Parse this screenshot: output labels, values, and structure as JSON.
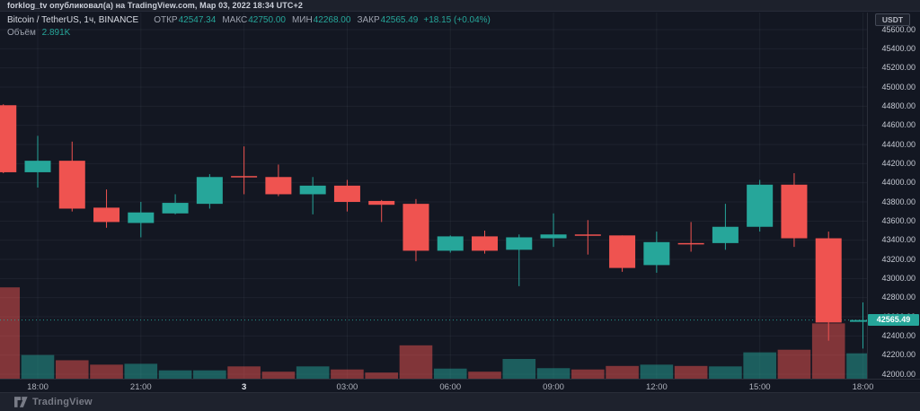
{
  "attribution": {
    "text": "forklog_tv опубликовал(а) на TradingView.com, Мар 03, 2022 18:34 UTC+2"
  },
  "legend": {
    "symbol": "Bitcoin / TetherUS, 1ч, BINANCE",
    "open_label": "ОТКР",
    "open_value": "42547.34",
    "high_label": "МАКС",
    "high_value": "42750.00",
    "low_label": "МИН",
    "low_value": "42268.00",
    "close_label": "ЗАКР",
    "close_value": "42565.49",
    "change": "+18.15 (+0.04%)",
    "volume_label": "Объём",
    "volume_value": "2.891K"
  },
  "price_axis": {
    "currency": "USDT",
    "last_price_label": "42565.49"
  },
  "footer": {
    "brand": "TradingView"
  },
  "colors": {
    "up": "#26a69a",
    "down": "#ef5350",
    "up_volume": "rgba(38,166,154,0.5)",
    "down_volume": "rgba(239,83,80,0.5)",
    "last_price_line": "#26a69a",
    "grid": "rgba(170,180,205,0.07)"
  },
  "chart_data": {
    "type": "candlestick",
    "title": "Bitcoin / TetherUS, 1ч, BINANCE",
    "ylabel": "Price (USDT)",
    "price_range": {
      "min": 42000,
      "max": 45600,
      "tick_step": 200
    },
    "price_ticks": [
      45600,
      45400,
      45200,
      45000,
      44800,
      44600,
      44400,
      44200,
      44000,
      43800,
      43600,
      43400,
      43200,
      43000,
      42800,
      42600,
      42400,
      42200,
      42000
    ],
    "time_labels": [
      {
        "text": "18:00",
        "candle": 1
      },
      {
        "text": "21:00",
        "candle": 4
      },
      {
        "text": "3",
        "candle": 7,
        "emphasis": true
      },
      {
        "text": "03:00",
        "candle": 10
      },
      {
        "text": "06:00",
        "candle": 13
      },
      {
        "text": "09:00",
        "candle": 16
      },
      {
        "text": "12:00",
        "candle": 19
      },
      {
        "text": "15:00",
        "candle": 22
      },
      {
        "text": "18:00",
        "candle": 25
      }
    ],
    "current_price": 42565.49,
    "candles": [
      {
        "time": "17:00",
        "open": 44810,
        "high": 44820,
        "low": 44100,
        "close": 44110,
        "volume": 10400
      },
      {
        "time": "18:00",
        "open": 44110,
        "high": 44490,
        "low": 43950,
        "close": 44230,
        "volume": 2700
      },
      {
        "time": "19:00",
        "open": 44230,
        "high": 44430,
        "low": 43700,
        "close": 43730,
        "volume": 2100
      },
      {
        "time": "20:00",
        "open": 43740,
        "high": 43930,
        "low": 43530,
        "close": 43590,
        "volume": 1600
      },
      {
        "time": "21:00",
        "open": 43580,
        "high": 43800,
        "low": 43430,
        "close": 43690,
        "volume": 1700
      },
      {
        "time": "22:00",
        "open": 43680,
        "high": 43880,
        "low": 43670,
        "close": 43790,
        "volume": 950
      },
      {
        "time": "23:00",
        "open": 43780,
        "high": 44090,
        "low": 43730,
        "close": 44060,
        "volume": 950
      },
      {
        "time": "00:00",
        "open": 44070,
        "high": 44380,
        "low": 43880,
        "close": 44060,
        "volume": 1400
      },
      {
        "time": "01:00",
        "open": 44060,
        "high": 44190,
        "low": 43860,
        "close": 43880,
        "volume": 800
      },
      {
        "time": "02:00",
        "open": 43880,
        "high": 44060,
        "low": 43670,
        "close": 43970,
        "volume": 1400
      },
      {
        "time": "03:00",
        "open": 43970,
        "high": 44030,
        "low": 43700,
        "close": 43800,
        "volume": 1050
      },
      {
        "time": "04:00",
        "open": 43810,
        "high": 43820,
        "low": 43590,
        "close": 43770,
        "volume": 700
      },
      {
        "time": "05:00",
        "open": 43780,
        "high": 43830,
        "low": 43180,
        "close": 43290,
        "volume": 3800
      },
      {
        "time": "06:00",
        "open": 43290,
        "high": 43450,
        "low": 43270,
        "close": 43440,
        "volume": 1150
      },
      {
        "time": "07:00",
        "open": 43440,
        "high": 43500,
        "low": 43260,
        "close": 43290,
        "volume": 800
      },
      {
        "time": "08:00",
        "open": 43300,
        "high": 43460,
        "low": 42920,
        "close": 43430,
        "volume": 2250
      },
      {
        "time": "09:00",
        "open": 43420,
        "high": 43680,
        "low": 43330,
        "close": 43460,
        "volume": 1200
      },
      {
        "time": "10:00",
        "open": 43460,
        "high": 43610,
        "low": 43250,
        "close": 43450,
        "volume": 1050
      },
      {
        "time": "11:00",
        "open": 43450,
        "high": 43450,
        "low": 43070,
        "close": 43110,
        "volume": 1450
      },
      {
        "time": "12:00",
        "open": 43140,
        "high": 43490,
        "low": 43060,
        "close": 43380,
        "volume": 1600
      },
      {
        "time": "13:00",
        "open": 43370,
        "high": 43590,
        "low": 43280,
        "close": 43360,
        "volume": 1450
      },
      {
        "time": "14:00",
        "open": 43370,
        "high": 43780,
        "low": 43300,
        "close": 43540,
        "volume": 1400
      },
      {
        "time": "15:00",
        "open": 43540,
        "high": 44030,
        "low": 43490,
        "close": 43980,
        "volume": 3000
      },
      {
        "time": "16:00",
        "open": 43980,
        "high": 44100,
        "low": 43330,
        "close": 43420,
        "volume": 3300
      },
      {
        "time": "17:00",
        "open": 43420,
        "high": 43490,
        "low": 42350,
        "close": 42540,
        "volume": 6300
      },
      {
        "time": "18:00",
        "open": 42547.34,
        "high": 42750,
        "low": 42268,
        "close": 42565.49,
        "volume": 2891
      }
    ]
  }
}
